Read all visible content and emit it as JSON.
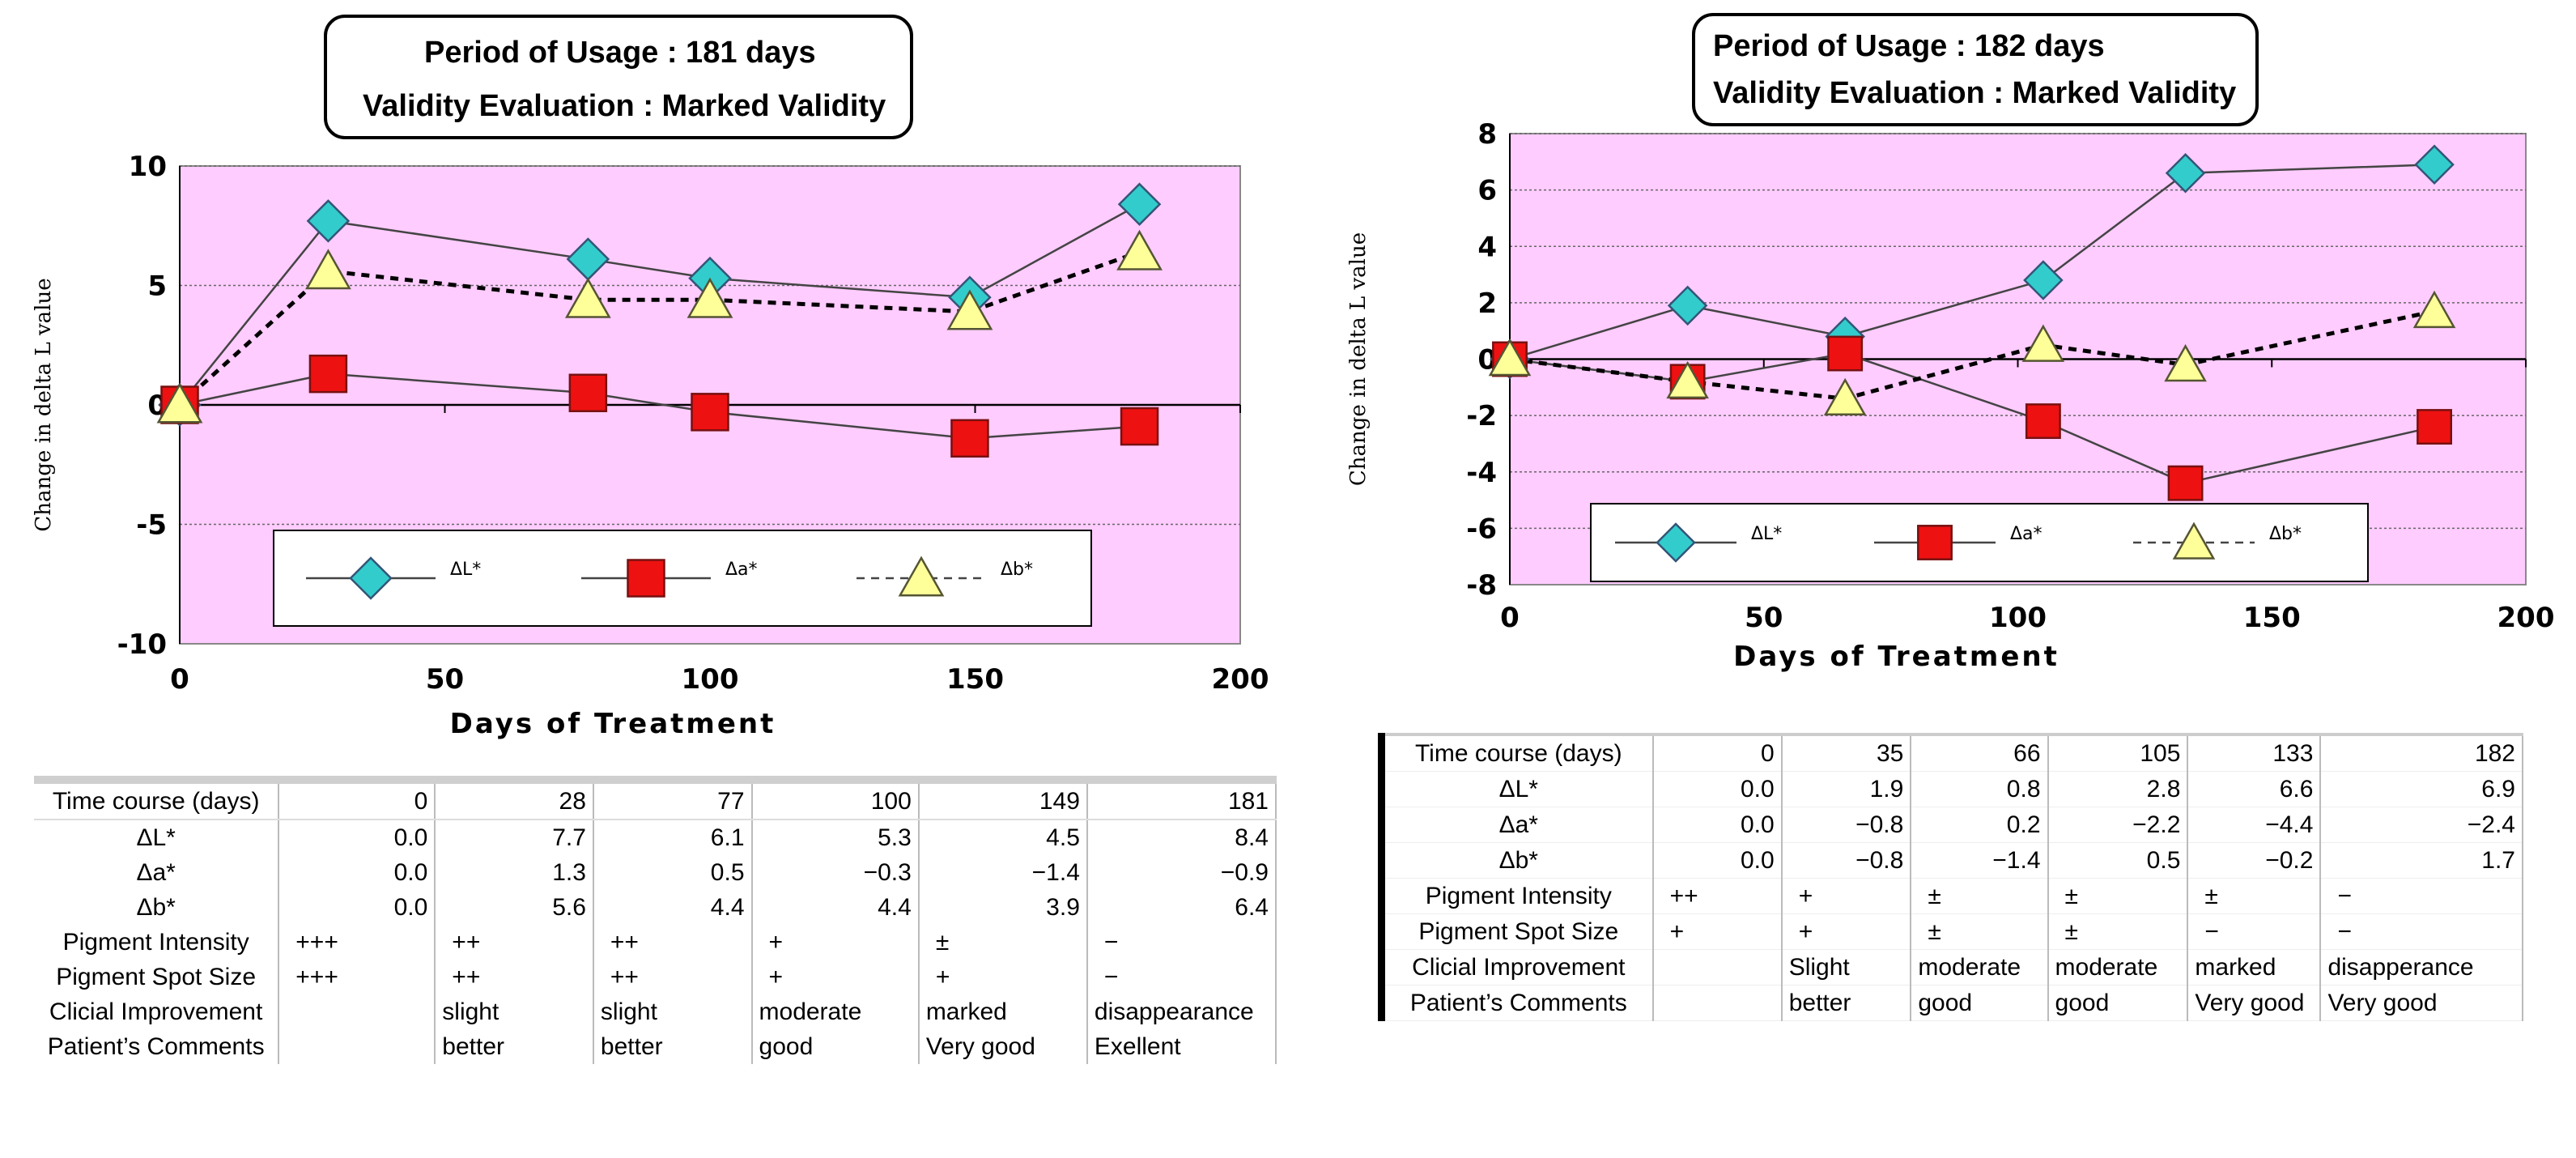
{
  "panels": [
    {
      "title_line1": "Period of Usage : 181 days",
      "title_line2": "Validity Evaluation : Marked Validity",
      "chart_data": {
        "type": "line",
        "xlabel": "Days of Treatment",
        "ylabel": "Change in delta L value",
        "xlim": [
          0,
          200
        ],
        "ylim": [
          -10,
          10
        ],
        "xticks": [
          0,
          50,
          100,
          150,
          200
        ],
        "yticks": [
          10,
          5,
          0,
          -5,
          -10
        ],
        "x": [
          0,
          28,
          77,
          100,
          149,
          181
        ],
        "series": [
          {
            "name": "ΔL*",
            "values": [
              0.0,
              7.7,
              6.1,
              5.3,
              4.5,
              8.4
            ],
            "marker": "diamond",
            "color": "#33cccc",
            "dash": false
          },
          {
            "name": "Δa*",
            "values": [
              0.0,
              1.3,
              0.5,
              -0.3,
              -1.4,
              -0.9
            ],
            "marker": "square",
            "color": "#ee1111",
            "dash": false
          },
          {
            "name": "Δb*",
            "values": [
              0.0,
              5.6,
              4.4,
              4.4,
              3.9,
              6.4
            ],
            "marker": "triangle",
            "color": "#ffff99",
            "dash": true
          }
        ],
        "plot_bg": "#ffccff",
        "grid": true,
        "legend_position": "bottom"
      },
      "table": {
        "rows": [
          [
            "Time course (days)",
            "0",
            "28",
            "77",
            "100",
            "149",
            "181"
          ],
          [
            "ΔL*",
            "0.0",
            "7.7",
            "6.1",
            "5.3",
            "4.5",
            "8.4"
          ],
          [
            "Δa*",
            "0.0",
            "1.3",
            "0.5",
            "−0.3",
            "−1.4",
            "−0.9"
          ],
          [
            "Δb*",
            "0.0",
            "5.6",
            "4.4",
            "4.4",
            "3.9",
            "6.4"
          ],
          [
            "Pigment Intensity",
            "+++",
            "++",
            "++",
            "+",
            "±",
            "−"
          ],
          [
            "Pigment Spot Size",
            "+++",
            "++",
            "++",
            "+",
            "+",
            "−"
          ],
          [
            "Clicial Improvement",
            "",
            "slight",
            "slight",
            "moderate",
            "marked",
            "disappearance"
          ],
          [
            "Patient’s Comments",
            "",
            "better",
            "better",
            "good",
            "Very good",
            "Exellent"
          ]
        ]
      }
    },
    {
      "title_line1": "Period of Usage : 182 days",
      "title_line2": "Validity Evaluation : Marked Validity",
      "chart_data": {
        "type": "line",
        "xlabel": "Days of Treatment",
        "ylabel": "Change in delta L value",
        "xlim": [
          0,
          200
        ],
        "ylim": [
          -8,
          8
        ],
        "xticks": [
          0,
          50,
          100,
          150,
          200
        ],
        "yticks": [
          8,
          6,
          4,
          2,
          0,
          -2,
          -4,
          -6,
          -8
        ],
        "x": [
          0,
          35,
          66,
          105,
          133,
          182
        ],
        "series": [
          {
            "name": "ΔL*",
            "values": [
              0.0,
              1.9,
              0.8,
              2.8,
              6.6,
              6.9
            ],
            "marker": "diamond",
            "color": "#33cccc",
            "dash": false
          },
          {
            "name": "Δa*",
            "values": [
              0.0,
              -0.8,
              0.2,
              -2.2,
              -4.4,
              -2.4
            ],
            "marker": "square",
            "color": "#ee1111",
            "dash": false
          },
          {
            "name": "Δb*",
            "values": [
              0.0,
              -0.8,
              -1.4,
              0.5,
              -0.2,
              1.7
            ],
            "marker": "triangle",
            "color": "#ffff99",
            "dash": true
          }
        ],
        "plot_bg": "#ffccff",
        "grid": true,
        "legend_position": "bottom"
      },
      "table": {
        "rows": [
          [
            "Time course (days)",
            "0",
            "35",
            "66",
            "105",
            "133",
            "182"
          ],
          [
            "ΔL*",
            "0.0",
            "1.9",
            "0.8",
            "2.8",
            "6.6",
            "6.9"
          ],
          [
            "Δa*",
            "0.0",
            "−0.8",
            "0.2",
            "−2.2",
            "−4.4",
            "−2.4"
          ],
          [
            "Δb*",
            "0.0",
            "−0.8",
            "−1.4",
            "0.5",
            "−0.2",
            "1.7"
          ],
          [
            "Pigment Intensity",
            "++",
            "+",
            "±",
            "±",
            "±",
            "−"
          ],
          [
            "Pigment Spot Size",
            "+",
            "+",
            "±",
            "±",
            "−",
            "−"
          ],
          [
            "Clicial Improvement",
            "",
            "Slight",
            "moderate",
            "moderate",
            "marked",
            "disapperance"
          ],
          [
            "Patient’s Comments",
            "",
            "better",
            "good",
            "good",
            "Very good",
            "Very good"
          ]
        ]
      }
    }
  ]
}
